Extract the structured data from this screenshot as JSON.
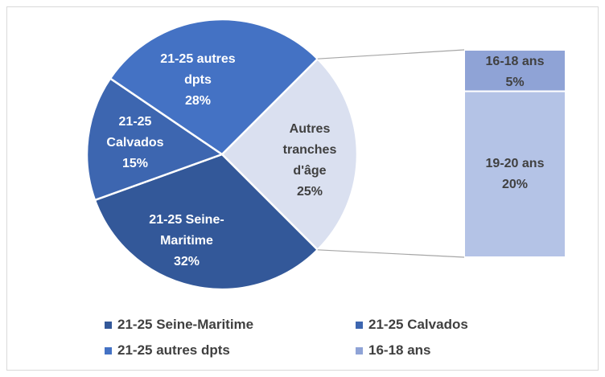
{
  "chart_data": {
    "type": "pie-of-bar",
    "categories": [
      "Autres tranches d'âge",
      "21-25 Seine-Maritime",
      "21-25 Calvados",
      "21-25 autres dpts"
    ],
    "values": [
      25,
      32,
      15,
      28
    ],
    "value_labels": [
      "25%",
      "32%",
      "15%",
      "28%"
    ],
    "colors": [
      "#dae0f0",
      "#335899",
      "#3d66b0",
      "#4472c4"
    ],
    "bar": {
      "categories": [
        "16-18 ans",
        "19-20 ans"
      ],
      "values": [
        5,
        20
      ],
      "value_labels": [
        "5%",
        "20%"
      ],
      "colors": [
        "#8fa3d6",
        "#b4c3e6"
      ]
    }
  }
}
